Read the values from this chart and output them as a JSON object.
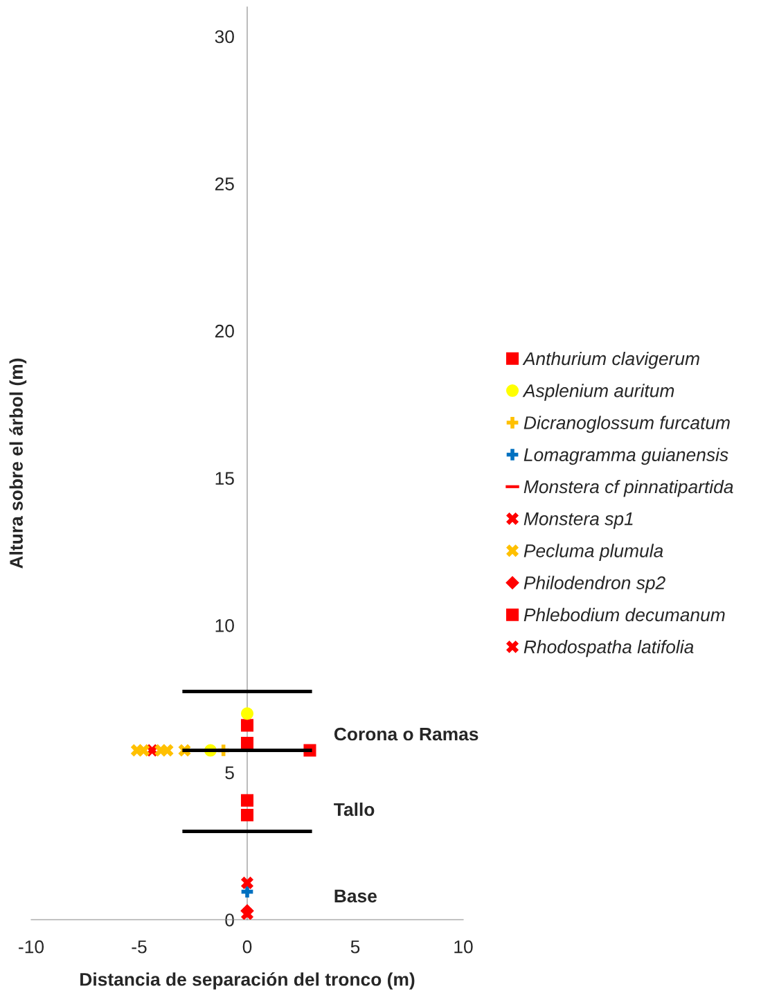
{
  "chart_data": {
    "type": "scatter",
    "xlabel": "Distancia de separación del tronco (m)",
    "ylabel": "Altura sobre el árbol (m)",
    "xlim": [
      -10,
      10
    ],
    "ylim": [
      0,
      31
    ],
    "xticks": [
      -10,
      -5,
      0,
      5,
      10
    ],
    "yticks": [
      0,
      5,
      10,
      15,
      20,
      25,
      30
    ],
    "grid": false,
    "legend": "right",
    "series": [
      {
        "type": "line",
        "color": "#000000",
        "x": [
          -3,
          3
        ],
        "values": [
          7.75,
          7.75
        ],
        "marker": "none"
      },
      {
        "type": "line",
        "color": "#000000",
        "x": [
          -3,
          3
        ],
        "values": [
          5.75,
          5.75
        ],
        "marker": "none"
      },
      {
        "type": "line",
        "color": "#000000",
        "x": [
          -3,
          3
        ],
        "values": [
          3.0,
          3.0
        ],
        "marker": "none"
      },
      {
        "name": "Anthurium clavigerum",
        "color": "#ff0000",
        "marker": "square",
        "x": [
          0,
          0,
          2.9
        ],
        "values": [
          6.6,
          6.0,
          5.75
        ]
      },
      {
        "name": "Asplenium auritum",
        "color": "#ffff00",
        "marker": "circle",
        "x": [
          0,
          -1.7
        ],
        "values": [
          7.0,
          5.75
        ]
      },
      {
        "name": "Dicranoglossum furcatum",
        "color": "#ffc000",
        "x": [
          -1.1
        ],
        "values": [
          5.75
        ]
      },
      {
        "name": "Lomagramma guianensis",
        "color": "#0070c0",
        "x": [
          0
        ],
        "values": [
          0.95
        ]
      },
      {
        "name": "Monstera cf pinnatipartida",
        "color": "#ff0000",
        "values": [
          null
        ]
      },
      {
        "name": "Monstera sp1",
        "color": "#ff0000",
        "marker": "cross",
        "x": [
          -4.4
        ],
        "values": [
          5.75
        ]
      },
      {
        "name": "Pecluma plumula",
        "color": "#ffc000",
        "marker": "cross",
        "x": [
          -5.1,
          -4.8,
          -4.0,
          -3.7,
          -2.9
        ],
        "values": [
          5.75,
          5.75,
          5.75,
          5.75,
          5.75
        ]
      },
      {
        "name": "Philodendron sp2",
        "color": "#ff0000",
        "marker": "diamond",
        "x": [
          0
        ],
        "values": [
          0.3
        ]
      },
      {
        "name": "Phlebodium decumanum",
        "color": "#ff0000",
        "marker": "square",
        "x": [
          0,
          0
        ],
        "values": [
          4.05,
          3.55
        ]
      },
      {
        "name": "Rhodospatha latifolia",
        "color": "#ff0000",
        "marker": "cross",
        "x": [
          0,
          0
        ],
        "values": [
          1.25,
          0.2
        ]
      }
    ],
    "annotations": [
      "Corona o Ramas",
      "Tallo",
      "Base"
    ]
  }
}
